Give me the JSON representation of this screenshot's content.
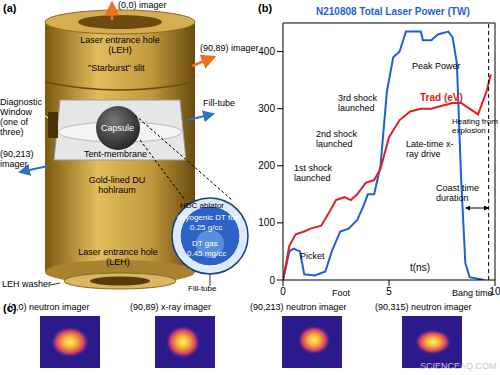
{
  "panel_labels": [
    "(a)",
    "(b)",
    "(c)"
  ],
  "panel_a": {
    "labels": [
      "(0,0) imager",
      "Laser entrance hole (LEH)",
      "\"Starburst\" slit",
      "(90,89) imager",
      "Diagnostic Window (one of three)",
      "Fill-tube",
      "(90,213) imager",
      "Capsule",
      "Tent-membrane",
      "Gold-lined DU hohlraum",
      "Laser entrance hole (LEH)",
      "LEH washer"
    ],
    "inset": [
      "HDC ablator",
      "Cryogenic DT fuel",
      "0.25 g/cc",
      "DT gas",
      "0.45 mg/cc",
      "Fill-tube"
    ]
  },
  "chart_data": {
    "type": "line",
    "x_label": "t(ns)",
    "xlim": [
      0,
      10
    ],
    "xticks": [
      0,
      5,
      10
    ],
    "ylim": [
      0,
      450
    ],
    "yticks": [
      0,
      100,
      200,
      300,
      400
    ],
    "series": [
      {
        "name": "N210808 Total Laser Power (TW)",
        "color": "#1f5fd6",
        "x": [
          0,
          0.3,
          0.5,
          0.8,
          1.0,
          1.5,
          2.0,
          2.3,
          2.7,
          3.1,
          3.5,
          3.8,
          4.0,
          4.3,
          4.6,
          4.9,
          5.2,
          5.5,
          5.8,
          6.5,
          6.6,
          7.0,
          7.3,
          7.8,
          8.0,
          8.2,
          8.4,
          8.6,
          8.8,
          9.5
        ],
        "values": [
          0,
          50,
          55,
          50,
          10,
          8,
          15,
          50,
          85,
          90,
          105,
          130,
          150,
          150,
          200,
          330,
          390,
          400,
          435,
          435,
          420,
          420,
          430,
          435,
          425,
          380,
          180,
          30,
          5,
          0
        ]
      },
      {
        "name": "Trad (eV)",
        "color": "#e02020",
        "x": [
          0,
          0.3,
          0.6,
          1.0,
          1.3,
          1.8,
          2.2,
          2.5,
          2.9,
          3.2,
          3.5,
          3.9,
          4.3,
          4.6,
          5.0,
          5.5,
          6.0,
          6.5,
          7.0,
          7.5,
          8.0,
          8.4,
          8.8,
          9.2,
          9.6,
          9.8
        ],
        "values": [
          0,
          60,
          80,
          85,
          90,
          95,
          120,
          140,
          145,
          140,
          150,
          170,
          175,
          195,
          250,
          280,
          295,
          300,
          300,
          305,
          310,
          310,
          300,
          290,
          330,
          360
        ]
      }
    ],
    "annotations": [
      {
        "text": "Picket"
      },
      {
        "text": "1st shock launched"
      },
      {
        "text": "2nd shock launched"
      },
      {
        "text": "3rd shock launched"
      },
      {
        "text": "Peak Power"
      },
      {
        "text": "Late-time x-ray drive"
      },
      {
        "text": "Heating from explosion"
      },
      {
        "text": "Coast time duration"
      },
      {
        "text": "Foot"
      },
      {
        "text": "Bang time",
        "x": 9.7
      }
    ]
  },
  "panel_c": {
    "images": [
      "(0,0) neutron imager",
      "(90,89) x-ray imager",
      "(90,213) neutron imager",
      "(90,315) neutron imager"
    ]
  },
  "watermark": "SCIENCEAQ.COM"
}
